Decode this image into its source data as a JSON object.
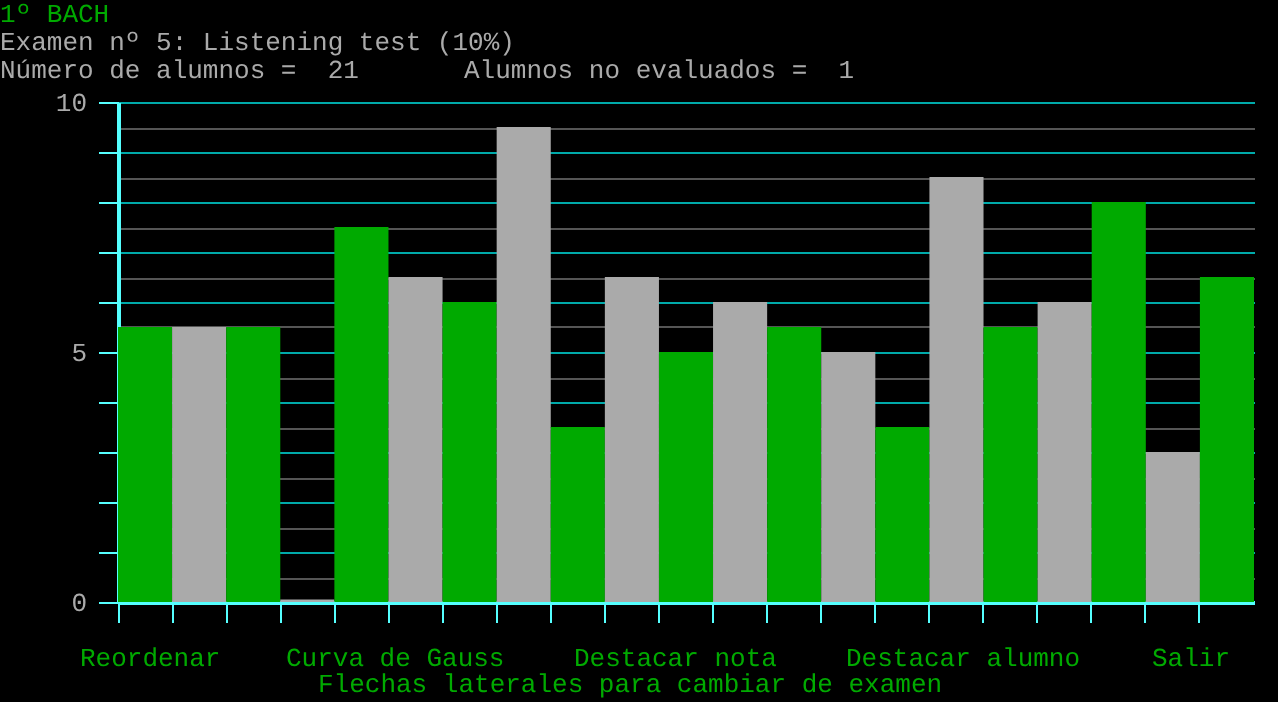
{
  "chart_data": {
    "type": "bar",
    "title": "1º BACH",
    "subtitle": "Examen nº 5: Listening test (10%)",
    "categories": [
      null,
      null,
      null,
      null,
      null,
      null,
      null,
      null,
      null,
      null,
      null,
      null,
      null,
      null,
      null,
      null,
      null,
      null,
      null,
      null,
      null
    ],
    "values": [
      5.5,
      5.5,
      5.5,
      0.05,
      7.5,
      6.5,
      6.0,
      9.5,
      3.5,
      6.5,
      5.0,
      6.0,
      5.5,
      5.0,
      3.5,
      8.5,
      5.5,
      6.0,
      8.0,
      3.0,
      6.5
    ],
    "colors": [
      "#00aa00",
      "#aaaaaa",
      "#00aa00",
      "#aaaaaa",
      "#00aa00",
      "#aaaaaa",
      "#00aa00",
      "#aaaaaa",
      "#00aa00",
      "#aaaaaa",
      "#00aa00",
      "#aaaaaa",
      "#00aa00",
      "#aaaaaa",
      "#00aa00",
      "#aaaaaa",
      "#00aa00",
      "#aaaaaa",
      "#00aa00",
      "#aaaaaa",
      "#00aa00"
    ],
    "ylim": [
      0,
      10
    ],
    "yticks": [
      0,
      {
        "value": 0.5,
        "label": null
      },
      {
        "value": 1,
        "label": null
      },
      {
        "value": 1.5,
        "label": null
      },
      {
        "value": 2,
        "label": null
      },
      {
        "value": 2.5,
        "label": null
      },
      {
        "value": 3,
        "label": null
      },
      {
        "value": 3.5,
        "label": null
      },
      {
        "value": 4,
        "label": null
      },
      {
        "value": 4.5,
        "label": null
      },
      5,
      {
        "value": 5.5,
        "label": null
      },
      {
        "value": 6,
        "label": null
      },
      {
        "value": 6.5,
        "label": null
      },
      {
        "value": 7,
        "label": null
      },
      {
        "value": 7.5,
        "label": null
      },
      {
        "value": 8,
        "label": null
      },
      {
        "value": 8.5,
        "label": null
      },
      {
        "value": 9,
        "label": null
      },
      {
        "value": 9.5,
        "label": null
      },
      10
    ],
    "grid": "y",
    "tick_labels": "y",
    "annotations": [
      "Número de alumnos =  21",
      "Alumnos no evaluados =  1",
      "Reordenar",
      "Curva de Gauss",
      "Destacar nota",
      "Destacar alumno",
      "Salir",
      "Flechas laterales para cambiar de examen"
    ]
  }
}
